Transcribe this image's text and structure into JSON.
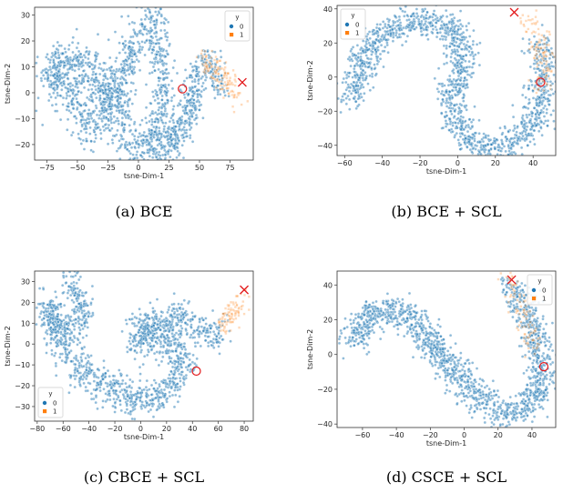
{
  "chart_data": [
    {
      "type": "scatter",
      "caption": "(a)  BCE",
      "xlabel": "tsne-Dim-1",
      "ylabel": "tsne-Dim-2",
      "xlim": [
        -85,
        94
      ],
      "ylim": [
        -26,
        33
      ],
      "xticks": [
        -75,
        -50,
        -25,
        0,
        25,
        50,
        75
      ],
      "yticks": [
        -20,
        -10,
        0,
        10,
        20,
        30
      ],
      "legend": {
        "title": "y",
        "placement": "top-right",
        "labels": [
          "0",
          "1"
        ]
      },
      "series": [
        {
          "name": "0",
          "color": "#1f77b4",
          "marker": "circle",
          "path": [
            [
              -78,
              5
            ],
            [
              -70,
              8
            ],
            [
              -60,
              2
            ],
            [
              -50,
              -5
            ],
            [
              -38,
              -13
            ],
            [
              -25,
              -6
            ],
            [
              -15,
              4
            ],
            [
              -8,
              12
            ],
            [
              0,
              22
            ],
            [
              8,
              28
            ],
            [
              15,
              25
            ],
            [
              18,
              15
            ],
            [
              22,
              4
            ],
            [
              20,
              -8
            ],
            [
              12,
              -20
            ],
            [
              0,
              -21
            ],
            [
              -10,
              -15
            ],
            [
              -20,
              -5
            ],
            [
              -30,
              4
            ],
            [
              -40,
              8
            ],
            [
              -50,
              10
            ],
            [
              -60,
              11
            ],
            [
              -70,
              10
            ]
          ],
          "spread": 5,
          "count": 1400
        },
        {
          "name": "0",
          "color": "#1f77b4",
          "marker": "circle",
          "path": [
            [
              15,
              -22
            ],
            [
              28,
              -18
            ],
            [
              38,
              -12
            ],
            [
              45,
              -3
            ],
            [
              48,
              8
            ],
            [
              52,
              10
            ],
            [
              60,
              9
            ],
            [
              68,
              5
            ]
          ],
          "spread": 4,
          "count": 450
        },
        {
          "name": "1",
          "color": "#ff7f0e",
          "marker": "square",
          "path": [
            [
              50,
              12
            ],
            [
              58,
              10
            ],
            [
              66,
              8
            ],
            [
              72,
              5
            ],
            [
              78,
              2
            ],
            [
              80,
              -3
            ]
          ],
          "spread": 3,
          "count": 130
        }
      ],
      "markers": [
        {
          "type": "circle",
          "x": 36,
          "y": 1.5
        },
        {
          "type": "cross",
          "x": 85,
          "y": 4
        }
      ]
    },
    {
      "type": "scatter",
      "caption": "(b)  BCE + SCL",
      "xlabel": "tsne-Dim-1",
      "ylabel": "tsne-Dim-2",
      "xlim": [
        -64,
        52
      ],
      "ylim": [
        -46,
        42
      ],
      "xticks": [
        -60,
        -40,
        -20,
        0,
        20,
        40
      ],
      "yticks": [
        -40,
        -20,
        0,
        20,
        40
      ],
      "legend": {
        "title": "y",
        "placement": "top-left",
        "labels": [
          "0",
          "1"
        ]
      },
      "series": [
        {
          "name": "0",
          "color": "#1f77b4",
          "marker": "circle",
          "path": [
            [
              -56,
              -15
            ],
            [
              -54,
              -2
            ],
            [
              -50,
              10
            ],
            [
              -44,
              20
            ],
            [
              -36,
              27
            ],
            [
              -26,
              32
            ],
            [
              -16,
              33
            ],
            [
              -6,
              30
            ],
            [
              0,
              22
            ],
            [
              2,
              10
            ],
            [
              0,
              -2
            ],
            [
              -4,
              -12
            ],
            [
              -2,
              -24
            ],
            [
              4,
              -35
            ],
            [
              14,
              -41
            ],
            [
              26,
              -40
            ],
            [
              36,
              -32
            ],
            [
              42,
              -20
            ],
            [
              45,
              -8
            ],
            [
              46,
              2
            ],
            [
              46,
              12
            ],
            [
              44,
              22
            ]
          ],
          "spread": 4,
          "count": 1500
        },
        {
          "name": "1",
          "color": "#ff7f0e",
          "marker": "square",
          "path": [
            [
              34,
              36
            ],
            [
              40,
              30
            ],
            [
              44,
              20
            ],
            [
              46,
              10
            ],
            [
              47,
              0
            ],
            [
              45,
              -8
            ]
          ],
          "spread": 3,
          "count": 110
        }
      ],
      "markers": [
        {
          "type": "cross",
          "x": 30,
          "y": 38
        },
        {
          "type": "circle",
          "x": 44,
          "y": -3
        }
      ]
    },
    {
      "type": "scatter",
      "caption": "(c)  CBCE + SCL",
      "xlabel": "tsne-Dim-1",
      "ylabel": "tsne-Dim-2",
      "xlim": [
        -82,
        87
      ],
      "ylim": [
        -37,
        35
      ],
      "xticks": [
        -80,
        -60,
        -40,
        -20,
        0,
        20,
        40,
        60,
        80
      ],
      "yticks": [
        -30,
        -20,
        -10,
        0,
        10,
        20,
        30
      ],
      "legend": {
        "title": "y",
        "placement": "bottom-left",
        "labels": [
          "0",
          "1"
        ]
      },
      "series": [
        {
          "name": "0",
          "color": "#1f77b4",
          "marker": "circle",
          "path": [
            [
              -55,
              31
            ],
            [
              -48,
              24
            ],
            [
              -44,
              15
            ],
            [
              -50,
              8
            ],
            [
              -62,
              4
            ],
            [
              -70,
              8
            ],
            [
              -72,
              18
            ],
            [
              -70,
              20
            ],
            [
              -62,
              0
            ],
            [
              -50,
              -10
            ],
            [
              -36,
              -18
            ],
            [
              -20,
              -22
            ],
            [
              -6,
              -26
            ],
            [
              8,
              -26
            ],
            [
              20,
              -21
            ],
            [
              30,
              -14
            ],
            [
              36,
              -8
            ],
            [
              28,
              -2
            ],
            [
              12,
              3
            ],
            [
              0,
              6
            ],
            [
              -6,
              2
            ],
            [
              10,
              10
            ],
            [
              30,
              12
            ],
            [
              46,
              8
            ],
            [
              56,
              4
            ],
            [
              64,
              8
            ]
          ],
          "spread": 4.5,
          "count": 1500
        },
        {
          "name": "1",
          "color": "#ff7f0e",
          "marker": "square",
          "path": [
            [
              64,
              8
            ],
            [
              70,
              14
            ],
            [
              74,
              18
            ],
            [
              78,
              22
            ]
          ],
          "spread": 3,
          "count": 90
        }
      ],
      "markers": [
        {
          "type": "cross",
          "x": 80,
          "y": 26
        },
        {
          "type": "circle",
          "x": 43,
          "y": -13
        }
      ]
    },
    {
      "type": "scatter",
      "caption": "(d)  CSCE + SCL",
      "xlabel": "tsne-Dim-1",
      "ylabel": "tsne-Dim-2",
      "xlim": [
        -75,
        54
      ],
      "ylim": [
        -42,
        48
      ],
      "xticks": [
        -60,
        -40,
        -20,
        0,
        20,
        40
      ],
      "yticks": [
        -40,
        -20,
        0,
        20,
        40
      ],
      "legend": {
        "title": "y",
        "placement": "top-right",
        "labels": [
          "0",
          "1"
        ]
      },
      "series": [
        {
          "name": "0",
          "color": "#1f77b4",
          "marker": "circle",
          "path": [
            [
              -68,
              8
            ],
            [
              -60,
              14
            ],
            [
              -55,
              24
            ],
            [
              -45,
              24
            ],
            [
              -35,
              24
            ],
            [
              -30,
              20
            ],
            [
              -24,
              12
            ],
            [
              -16,
              2
            ],
            [
              -10,
              -6
            ],
            [
              -2,
              -14
            ],
            [
              6,
              -22
            ],
            [
              14,
              -30
            ],
            [
              24,
              -34
            ],
            [
              34,
              -32
            ],
            [
              42,
              -24
            ],
            [
              46,
              -14
            ],
            [
              46,
              -4
            ],
            [
              42,
              8
            ],
            [
              38,
              20
            ],
            [
              34,
              30
            ],
            [
              28,
              40
            ]
          ],
          "spread": 4.5,
          "count": 1500
        },
        {
          "name": "1",
          "color": "#ff7f0e",
          "marker": "square",
          "path": [
            [
              26,
              44
            ],
            [
              30,
              36
            ],
            [
              34,
              26
            ],
            [
              38,
              14
            ],
            [
              40,
              2
            ]
          ],
          "spread": 3,
          "count": 90
        }
      ],
      "markers": [
        {
          "type": "cross",
          "x": 28,
          "y": 43
        },
        {
          "type": "circle",
          "x": 47,
          "y": -7
        }
      ]
    }
  ]
}
